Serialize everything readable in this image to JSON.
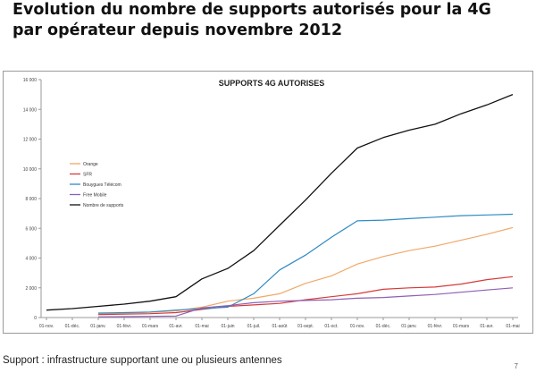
{
  "slide": {
    "title_line1": "Evolution du nombre de supports autorisés pour la 4G",
    "title_line2": "par opérateur depuis novembre 2012",
    "footnote": "Support : infrastructure supportant une ou plusieurs antennes",
    "page_number": "7"
  },
  "chart_data": {
    "type": "line",
    "title": "SUPPORTS 4G AUTORISES",
    "xlabel": "",
    "ylabel": "",
    "ylim": [
      0,
      16000
    ],
    "yticks": [
      0,
      2000,
      4000,
      6000,
      8000,
      10000,
      12000,
      14000,
      16000
    ],
    "ytick_labels": [
      "0",
      "2 000",
      "4 000",
      "6 000",
      "8 000",
      "10 000",
      "12 000",
      "14 000",
      "16 000"
    ],
    "categories": [
      "01-nov.",
      "01-déc.",
      "01-janv.",
      "01-févr.",
      "01-mars",
      "01-avr.",
      "01-mai",
      "01-juin",
      "01-juil.",
      "01-août",
      "01-sept.",
      "01-oct.",
      "01-nov.",
      "01-déc.",
      "01-janv.",
      "01-févr.",
      "01-mars",
      "01-avr.",
      "01-mai"
    ],
    "grid": false,
    "legend_position": "left",
    "series": [
      {
        "name": "Orange",
        "color": "#f0a868",
        "values": [
          null,
          null,
          250,
          300,
          350,
          450,
          700,
          1100,
          1300,
          1600,
          2300,
          2800,
          3600,
          4100,
          4500,
          4800,
          5200,
          5600,
          6050
        ]
      },
      {
        "name": "SFR",
        "color": "#d63a3a",
        "values": [
          null,
          null,
          200,
          230,
          260,
          330,
          550,
          750,
          850,
          950,
          1200,
          1400,
          1600,
          1900,
          2000,
          2050,
          2250,
          2550,
          2750
        ]
      },
      {
        "name": "Bouygues Télécom",
        "color": "#2e8bc4",
        "values": [
          null,
          null,
          300,
          330,
          370,
          500,
          600,
          700,
          1600,
          3200,
          4200,
          5400,
          6500,
          6550,
          6650,
          6750,
          6850,
          6900,
          6950
        ]
      },
      {
        "name": "Free Mobile",
        "color": "#8e5fb5",
        "values": [
          null,
          null,
          50,
          60,
          80,
          100,
          650,
          800,
          1000,
          1100,
          1150,
          1200,
          1300,
          1350,
          1450,
          1550,
          1700,
          1850,
          2000
        ]
      },
      {
        "name": "Nombre de supports",
        "color": "#111111",
        "values": [
          500,
          600,
          750,
          900,
          1100,
          1400,
          2600,
          3300,
          4500,
          6200,
          7900,
          9700,
          11400,
          12100,
          12600,
          13000,
          13700,
          14300,
          15000
        ]
      }
    ]
  }
}
